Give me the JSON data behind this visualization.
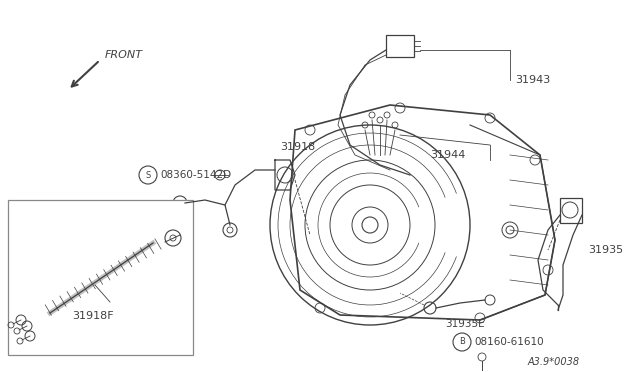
{
  "bg_color": "#ffffff",
  "line_color": "#404040",
  "text_color": "#404040",
  "fig_code": "A3.9*0038",
  "figsize": [
    6.4,
    3.72
  ],
  "dpi": 100,
  "xlim": [
    0,
    640
  ],
  "ylim": [
    0,
    372
  ]
}
